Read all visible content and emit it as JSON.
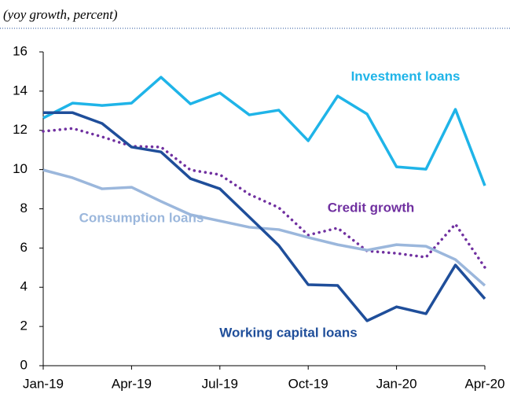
{
  "chart_data": {
    "type": "line",
    "subtitle": "(yoy growth, percent)",
    "categories": [
      "Jan-19",
      null,
      null,
      "Apr-19",
      null,
      null,
      "Jul-19",
      null,
      null,
      "Oct-19",
      null,
      null,
      "Jan-20",
      null,
      null,
      "Apr-20"
    ],
    "ylim": [
      0,
      16
    ],
    "yticks": [
      0,
      2,
      4,
      6,
      8,
      10,
      12,
      14,
      16
    ],
    "series": [
      {
        "name": "Investment loans",
        "color": "#1fb4e8",
        "style": "solid",
        "values": [
          12.63,
          13.39,
          13.27,
          13.39,
          14.71,
          13.35,
          13.91,
          12.79,
          13.03,
          11.47,
          13.75,
          12.83,
          10.14,
          10.02,
          13.07,
          9.18
        ]
      },
      {
        "name": "Credit growth",
        "color": "#7030a0",
        "style": "dotted",
        "values": [
          11.95,
          12.1,
          11.67,
          11.19,
          11.15,
          9.98,
          9.74,
          8.74,
          8.06,
          6.66,
          7.02,
          5.85,
          5.73,
          5.53,
          7.22,
          5.01
        ]
      },
      {
        "name": "Consumption loans",
        "color": "#9bb7dc",
        "style": "solid",
        "values": [
          9.98,
          9.58,
          9.02,
          9.1,
          8.38,
          7.7,
          7.38,
          7.06,
          6.94,
          6.54,
          6.17,
          5.89,
          6.17,
          6.09,
          5.41,
          4.09
        ]
      },
      {
        "name": "Working capital loans",
        "color": "#1f4e9a",
        "style": "solid",
        "values": [
          12.9,
          12.9,
          12.35,
          11.15,
          10.9,
          9.54,
          9.02,
          7.58,
          6.13,
          4.13,
          4.09,
          2.29,
          3.0,
          2.65,
          5.13,
          3.41
        ]
      }
    ]
  }
}
